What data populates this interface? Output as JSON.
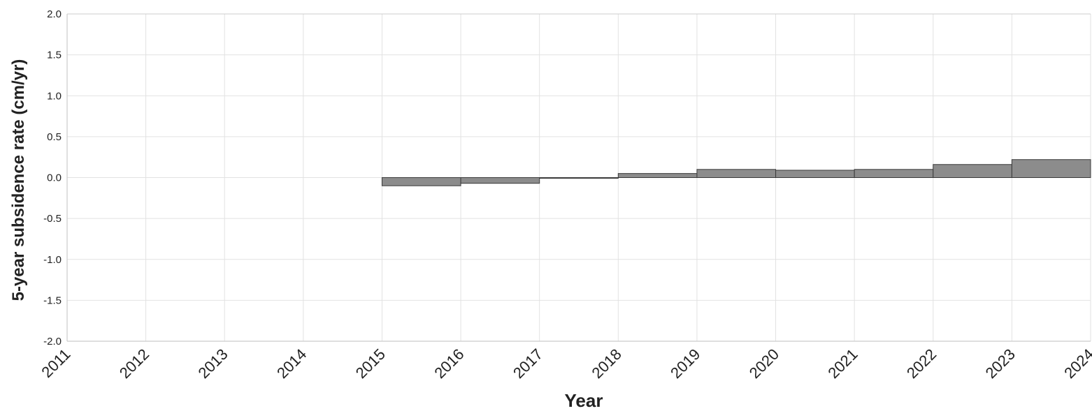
{
  "chart_data": {
    "type": "bar",
    "title": "",
    "xlabel": "Year",
    "ylabel": "5-year subsidence rate (cm/yr)",
    "xlim": [
      2011,
      2024
    ],
    "ylim": [
      -2.0,
      2.0
    ],
    "x_ticks": [
      "2011",
      "2012",
      "2013",
      "2014",
      "2015",
      "2016",
      "2017",
      "2018",
      "2019",
      "2020",
      "2021",
      "2022",
      "2023",
      "2024"
    ],
    "y_ticks": [
      "2.0",
      "1.5",
      "1.0",
      "0.5",
      "0.0",
      "-0.5",
      "-1.0",
      "-1.5",
      "-2.0"
    ],
    "grid": true,
    "bars": [
      {
        "start": 2015,
        "end": 2016,
        "value": -0.1
      },
      {
        "start": 2016,
        "end": 2017,
        "value": -0.07
      },
      {
        "start": 2017,
        "end": 2018,
        "value": 0.0
      },
      {
        "start": 2018,
        "end": 2019,
        "value": 0.05
      },
      {
        "start": 2019,
        "end": 2020,
        "value": 0.1
      },
      {
        "start": 2020,
        "end": 2021,
        "value": 0.09
      },
      {
        "start": 2021,
        "end": 2022,
        "value": 0.1
      },
      {
        "start": 2022,
        "end": 2023,
        "value": 0.16
      },
      {
        "start": 2023,
        "end": 2024,
        "value": 0.22
      }
    ],
    "colors": {
      "bar_fill": "#8c8c8c",
      "bar_stroke": "#3a3a3a",
      "grid": "#e2e2e2",
      "axis": "#cccccc"
    }
  }
}
